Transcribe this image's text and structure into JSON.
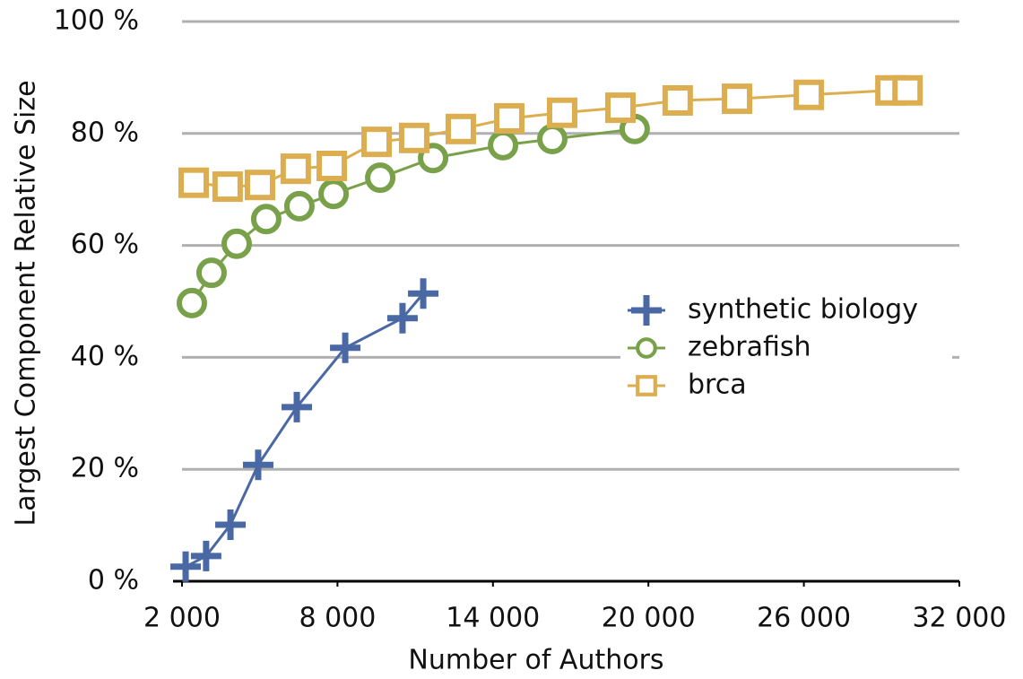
{
  "chart_data": {
    "type": "line",
    "x_label": "Number of Authors",
    "y_label": "Largest Component Relative Size",
    "xlim": [
      2000,
      32000
    ],
    "xticks": [
      {
        "value": 2000,
        "label": "2 000"
      },
      {
        "value": 8000,
        "label": "8 000"
      },
      {
        "value": 14000,
        "label": "14 000"
      },
      {
        "value": 20000,
        "label": "20 000"
      },
      {
        "value": 26000,
        "label": "26 000"
      },
      {
        "value": 32000,
        "label": "32 000"
      }
    ],
    "ylim": [
      0,
      100
    ],
    "yticks": [
      {
        "value": 0,
        "label": "0 %"
      },
      {
        "value": 20,
        "label": "20 %"
      },
      {
        "value": 40,
        "label": "40 %"
      },
      {
        "value": 60,
        "label": "60 %"
      },
      {
        "value": 80,
        "label": "80 %"
      },
      {
        "value": 100,
        "label": "100 %"
      }
    ],
    "grid": true,
    "legend": "right",
    "series": [
      {
        "name": "synthetic biology",
        "color": "#4a68a3",
        "marker": "plus",
        "x": [
          2140,
          2930,
          3870,
          4940,
          6430,
          8300,
          10510,
          11310
        ],
        "values": [
          2.6,
          4.5,
          10.1,
          20.8,
          31.1,
          41.7,
          47.0,
          51.4
        ]
      },
      {
        "name": "zebrafish",
        "color": "#78a14a",
        "marker": "circle",
        "x": [
          2380,
          3140,
          4110,
          5250,
          6530,
          7850,
          9650,
          11690,
          14390,
          16290,
          19470
        ],
        "values": [
          49.7,
          55.1,
          60.3,
          64.7,
          67.0,
          69.2,
          72.1,
          75.6,
          77.9,
          79.0,
          80.8
        ]
      },
      {
        "name": "brca",
        "color": "#dcae50",
        "marker": "square",
        "x": [
          2450,
          3760,
          5010,
          6390,
          7780,
          9510,
          10960,
          12760,
          14630,
          16670,
          18920,
          21130,
          23420,
          26190,
          29340,
          30000
        ],
        "values": [
          71.2,
          70.5,
          70.8,
          73.7,
          74.2,
          78.5,
          79.2,
          80.8,
          82.7,
          83.7,
          84.6,
          85.9,
          86.2,
          86.9,
          87.7,
          87.7
        ]
      }
    ]
  }
}
